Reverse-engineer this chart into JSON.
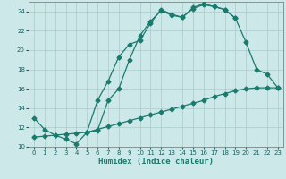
{
  "xlabel": "Humidex (Indice chaleur)",
  "bg_color": "#cce8e8",
  "grid_color": "#aacccc",
  "line_color": "#1a7a6e",
  "line1_x": [
    0,
    1,
    2,
    3,
    4,
    5,
    6,
    7,
    8,
    9,
    10,
    11,
    12,
    13,
    14,
    15,
    16,
    17,
    18,
    19
  ],
  "line1_y": [
    13,
    11.8,
    11.2,
    10.8,
    10.3,
    11.5,
    14.8,
    16.8,
    19.3,
    20.6,
    21.0,
    22.8,
    24.2,
    23.7,
    23.4,
    24.3,
    24.7,
    24.5,
    24.2,
    23.3
  ],
  "line2_x": [
    0,
    1,
    2,
    3,
    4,
    5,
    6,
    7,
    8,
    9,
    10,
    11,
    12,
    13,
    14,
    15,
    16,
    17,
    18,
    19,
    20,
    21,
    22,
    23
  ],
  "line2_y": [
    11.0,
    11.1,
    11.2,
    11.3,
    11.4,
    11.5,
    11.8,
    12.1,
    12.4,
    12.7,
    13.0,
    13.3,
    13.6,
    13.9,
    14.2,
    14.5,
    14.8,
    15.2,
    15.5,
    15.8,
    16.0,
    16.1,
    16.1,
    16.1
  ],
  "line3_x": [
    5,
    6,
    7,
    8,
    9,
    10,
    11,
    12,
    13,
    14,
    15,
    16,
    17,
    18,
    19,
    20,
    21,
    22,
    23
  ],
  "line3_y": [
    11.5,
    11.7,
    14.8,
    16.0,
    19.0,
    21.5,
    23.0,
    24.1,
    23.6,
    23.4,
    24.4,
    24.8,
    24.5,
    24.2,
    23.3,
    20.8,
    18.0,
    17.5,
    16.1
  ],
  "xlim": [
    -0.5,
    23.5
  ],
  "ylim": [
    10,
    25
  ],
  "yticks": [
    10,
    12,
    14,
    16,
    18,
    20,
    22,
    24
  ],
  "xticks": [
    0,
    1,
    2,
    3,
    4,
    5,
    6,
    7,
    8,
    9,
    10,
    11,
    12,
    13,
    14,
    15,
    16,
    17,
    18,
    19,
    20,
    21,
    22,
    23
  ]
}
